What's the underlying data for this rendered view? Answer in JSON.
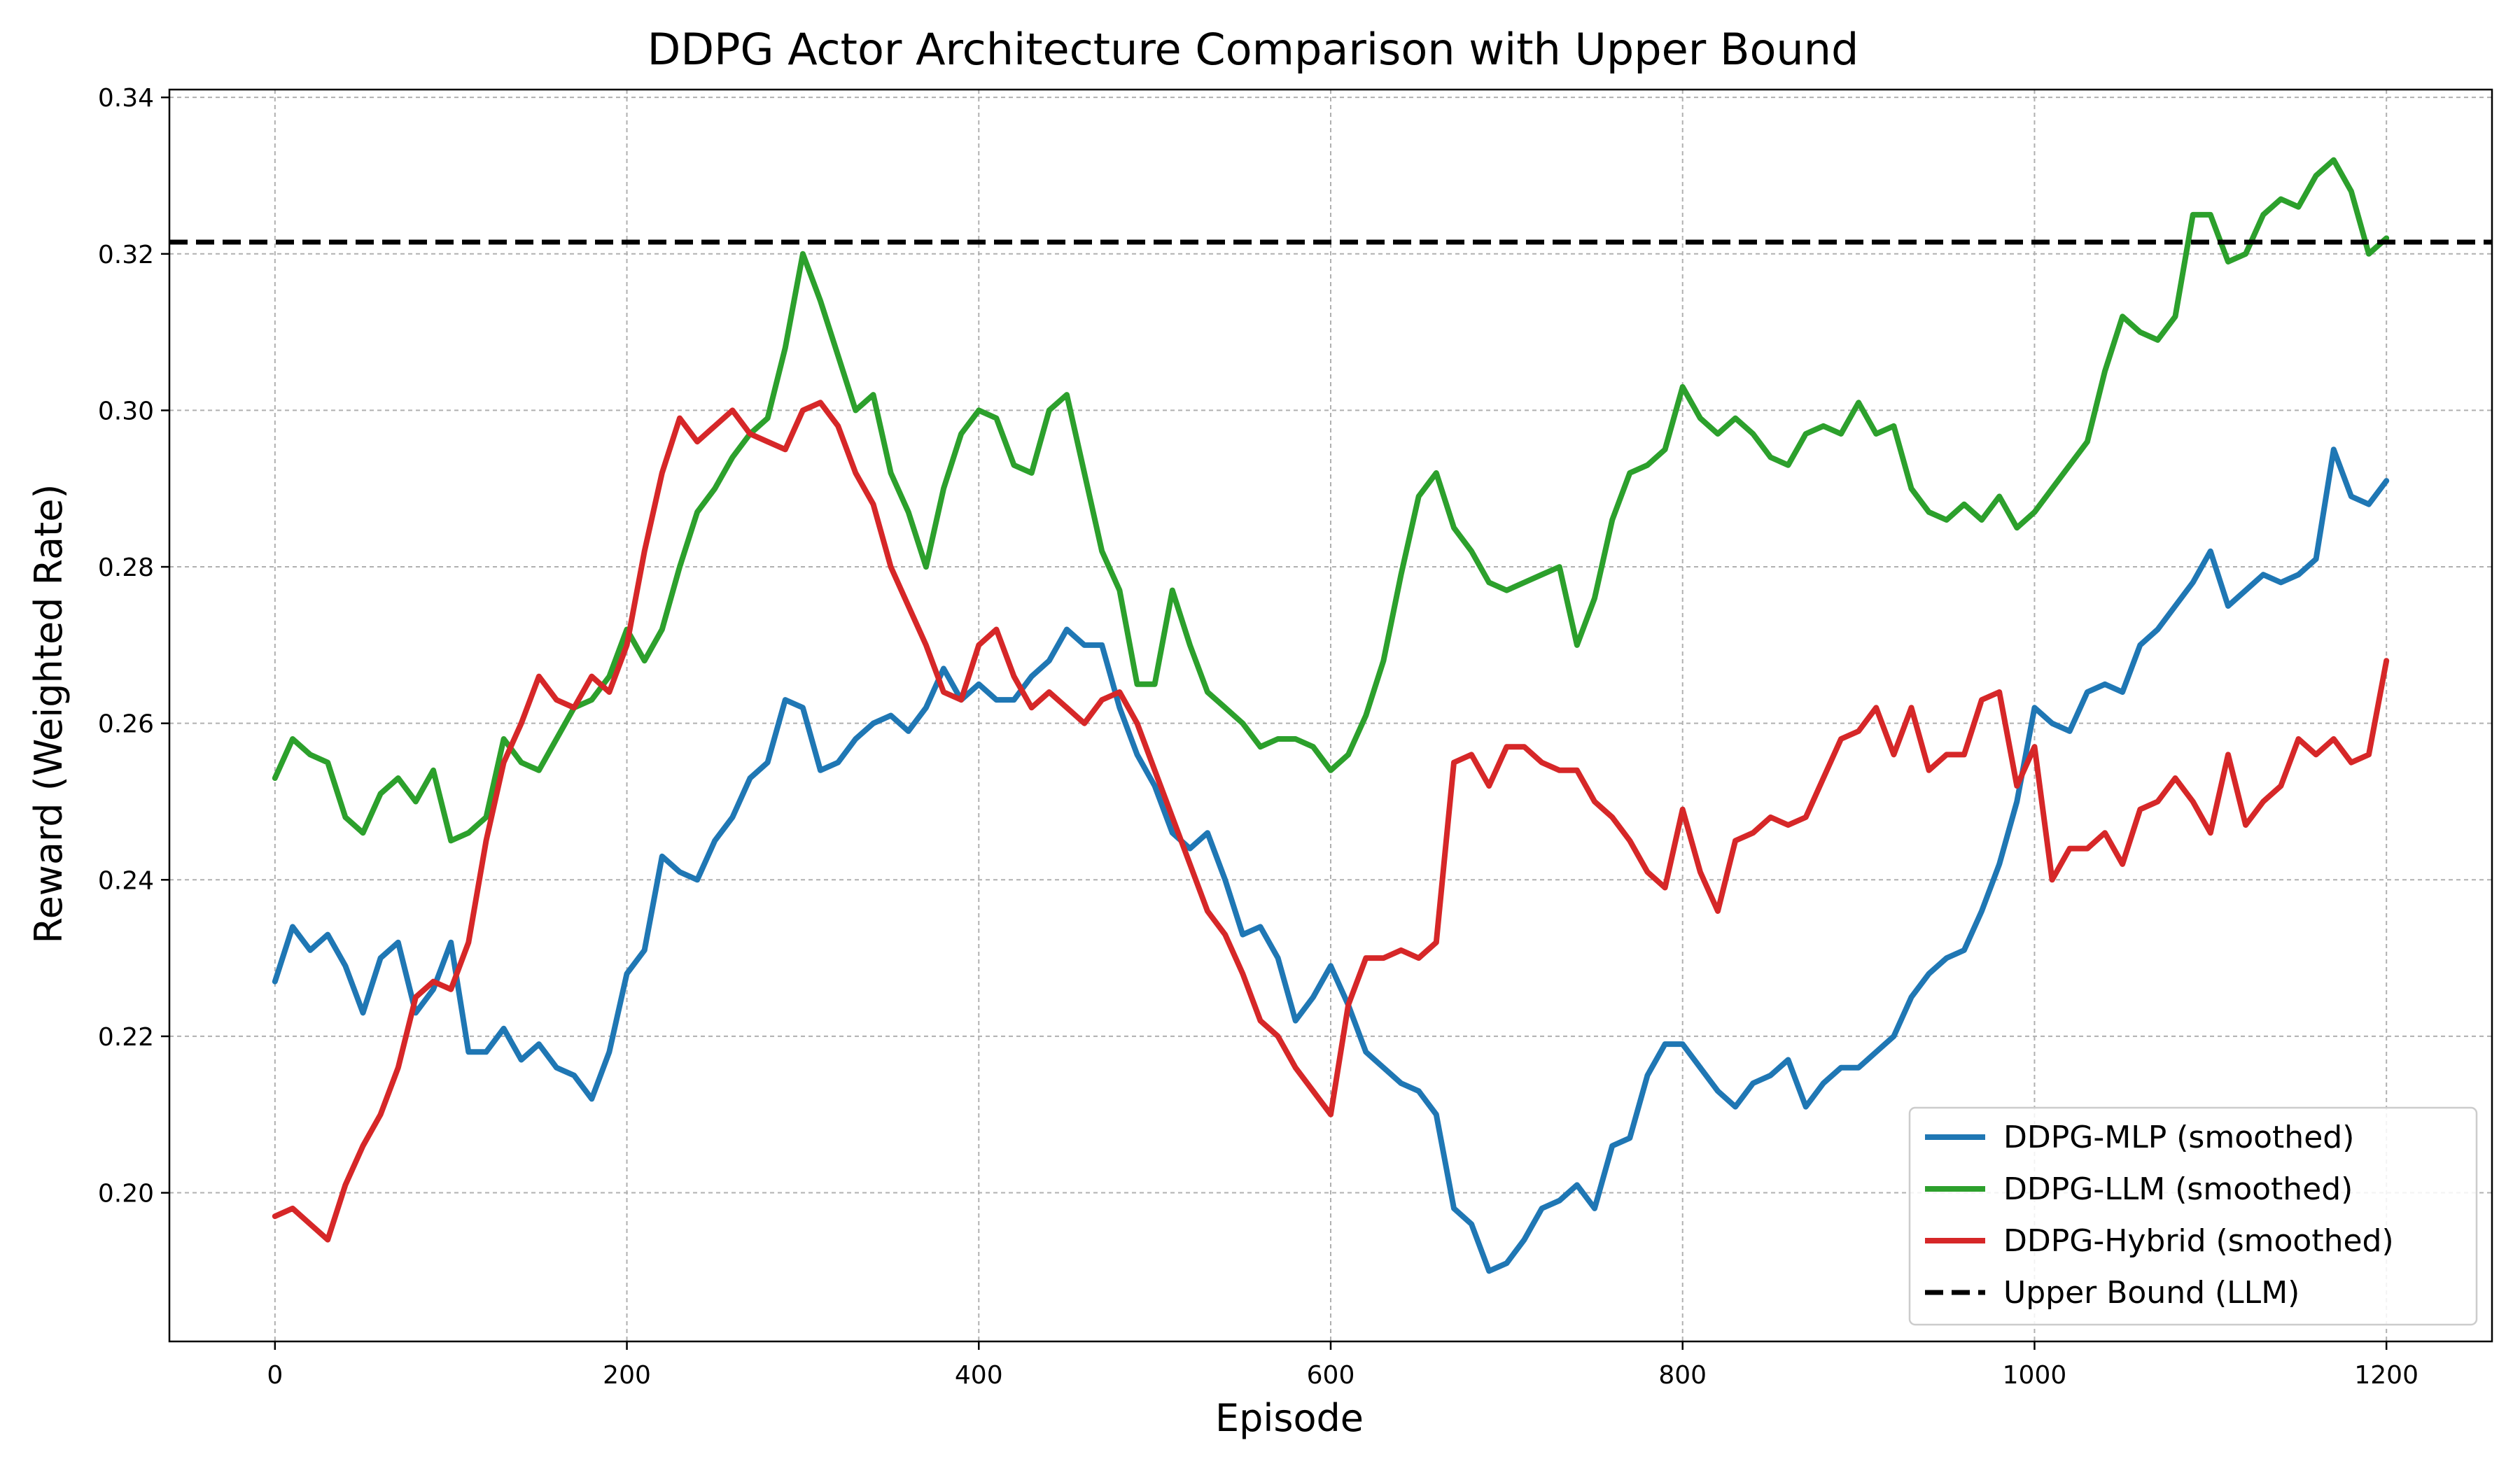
{
  "chart_data": {
    "type": "line",
    "title": "DDPG Actor Architecture Comparison with Upper Bound",
    "xlabel": "Episode",
    "ylabel": "Reward (Weighted Rate)",
    "xlim": [
      -60,
      1260
    ],
    "ylim": [
      0.181,
      0.341
    ],
    "xticks": [
      0,
      200,
      400,
      600,
      800,
      1000,
      1200
    ],
    "xtick_labels": [
      "0",
      "200",
      "400",
      "600",
      "800",
      "1000",
      "1200"
    ],
    "yticks": [
      0.2,
      0.22,
      0.24,
      0.26,
      0.28,
      0.3,
      0.32,
      0.34
    ],
    "ytick_labels": [
      "0.20",
      "0.22",
      "0.24",
      "0.26",
      "0.28",
      "0.30",
      "0.32",
      "0.34"
    ],
    "grid": true,
    "legend_position": "lower-right",
    "series": [
      {
        "name": "DDPG-MLP (smoothed)",
        "color": "#1f77b4",
        "x": [
          0,
          10,
          20,
          30,
          40,
          50,
          60,
          70,
          80,
          90,
          100,
          110,
          120,
          130,
          140,
          150,
          160,
          170,
          180,
          190,
          200,
          210,
          220,
          230,
          240,
          250,
          260,
          270,
          280,
          290,
          300,
          310,
          320,
          330,
          340,
          350,
          360,
          370,
          380,
          390,
          400,
          410,
          420,
          430,
          440,
          450,
          460,
          470,
          480,
          490,
          500,
          510,
          520,
          530,
          540,
          550,
          560,
          570,
          580,
          590,
          600,
          610,
          620,
          630,
          640,
          650,
          660,
          670,
          680,
          690,
          700,
          710,
          720,
          730,
          740,
          750,
          760,
          770,
          780,
          790,
          800,
          810,
          820,
          830,
          840,
          850,
          860,
          870,
          880,
          890,
          900,
          910,
          920,
          930,
          940,
          950,
          960,
          970,
          980,
          990,
          1000,
          1010,
          1020,
          1030,
          1040,
          1050,
          1060,
          1070,
          1080,
          1090,
          1100,
          1110,
          1120,
          1130,
          1140,
          1150,
          1160,
          1170,
          1180,
          1190,
          1200
        ],
        "values": [
          0.227,
          0.234,
          0.231,
          0.233,
          0.229,
          0.223,
          0.23,
          0.232,
          0.223,
          0.226,
          0.232,
          0.218,
          0.218,
          0.221,
          0.217,
          0.219,
          0.216,
          0.215,
          0.212,
          0.218,
          0.228,
          0.231,
          0.243,
          0.241,
          0.24,
          0.245,
          0.248,
          0.253,
          0.255,
          0.263,
          0.262,
          0.254,
          0.255,
          0.258,
          0.26,
          0.261,
          0.259,
          0.262,
          0.267,
          0.263,
          0.265,
          0.263,
          0.263,
          0.266,
          0.268,
          0.272,
          0.27,
          0.27,
          0.262,
          0.256,
          0.252,
          0.246,
          0.244,
          0.246,
          0.24,
          0.233,
          0.234,
          0.23,
          0.222,
          0.225,
          0.229,
          0.224,
          0.218,
          0.216,
          0.214,
          0.213,
          0.21,
          0.198,
          0.196,
          0.19,
          0.191,
          0.194,
          0.198,
          0.199,
          0.201,
          0.198,
          0.206,
          0.207,
          0.215,
          0.219,
          0.219,
          0.216,
          0.213,
          0.211,
          0.214,
          0.215,
          0.217,
          0.211,
          0.214,
          0.216,
          0.216,
          0.218,
          0.22,
          0.225,
          0.228,
          0.23,
          0.231,
          0.236,
          0.242,
          0.25,
          0.262,
          0.26,
          0.259,
          0.264,
          0.265,
          0.264,
          0.27,
          0.272,
          0.275,
          0.278,
          0.282,
          0.275,
          0.277,
          0.279,
          0.278,
          0.279,
          0.281,
          0.295,
          0.289,
          0.288,
          0.291
        ]
      },
      {
        "name": "DDPG-LLM (smoothed)",
        "color": "#2ca02c",
        "x": [
          0,
          10,
          20,
          30,
          40,
          50,
          60,
          70,
          80,
          90,
          100,
          110,
          120,
          130,
          140,
          150,
          160,
          170,
          180,
          190,
          200,
          210,
          220,
          230,
          240,
          250,
          260,
          270,
          280,
          290,
          300,
          310,
          320,
          330,
          340,
          350,
          360,
          370,
          380,
          390,
          400,
          410,
          420,
          430,
          440,
          450,
          460,
          470,
          480,
          490,
          500,
          510,
          520,
          530,
          540,
          550,
          560,
          570,
          580,
          590,
          600,
          610,
          620,
          630,
          640,
          650,
          660,
          670,
          680,
          690,
          700,
          710,
          720,
          730,
          740,
          750,
          760,
          770,
          780,
          790,
          800,
          810,
          820,
          830,
          840,
          850,
          860,
          870,
          880,
          890,
          900,
          910,
          920,
          930,
          940,
          950,
          960,
          970,
          980,
          990,
          1000,
          1010,
          1020,
          1030,
          1040,
          1050,
          1060,
          1070,
          1080,
          1090,
          1100,
          1110,
          1120,
          1130,
          1140,
          1150,
          1160,
          1170,
          1180,
          1190,
          1200
        ],
        "values": [
          0.253,
          0.258,
          0.256,
          0.255,
          0.248,
          0.246,
          0.251,
          0.253,
          0.25,
          0.254,
          0.245,
          0.246,
          0.248,
          0.258,
          0.255,
          0.254,
          0.258,
          0.262,
          0.263,
          0.266,
          0.272,
          0.268,
          0.272,
          0.28,
          0.287,
          0.29,
          0.294,
          0.297,
          0.299,
          0.308,
          0.32,
          0.314,
          0.307,
          0.3,
          0.302,
          0.292,
          0.287,
          0.28,
          0.29,
          0.297,
          0.3,
          0.299,
          0.293,
          0.292,
          0.3,
          0.302,
          0.292,
          0.282,
          0.277,
          0.265,
          0.265,
          0.277,
          0.27,
          0.264,
          0.262,
          0.26,
          0.257,
          0.258,
          0.258,
          0.257,
          0.254,
          0.256,
          0.261,
          0.268,
          0.279,
          0.289,
          0.292,
          0.285,
          0.282,
          0.278,
          0.277,
          0.278,
          0.279,
          0.28,
          0.27,
          0.276,
          0.286,
          0.292,
          0.293,
          0.295,
          0.303,
          0.299,
          0.297,
          0.299,
          0.297,
          0.294,
          0.293,
          0.297,
          0.298,
          0.297,
          0.301,
          0.297,
          0.298,
          0.29,
          0.287,
          0.286,
          0.288,
          0.286,
          0.289,
          0.285,
          0.287,
          0.29,
          0.293,
          0.296,
          0.305,
          0.312,
          0.31,
          0.309,
          0.312,
          0.325,
          0.325,
          0.319,
          0.32,
          0.325,
          0.327,
          0.326,
          0.33,
          0.332,
          0.328,
          0.32,
          0.322
        ]
      },
      {
        "name": "DDPG-Hybrid (smoothed)",
        "color": "#d62728",
        "x": [
          0,
          10,
          20,
          30,
          40,
          50,
          60,
          70,
          80,
          90,
          100,
          110,
          120,
          130,
          140,
          150,
          160,
          170,
          180,
          190,
          200,
          210,
          220,
          230,
          240,
          250,
          260,
          270,
          280,
          290,
          300,
          310,
          320,
          330,
          340,
          350,
          360,
          370,
          380,
          390,
          400,
          410,
          420,
          430,
          440,
          450,
          460,
          470,
          480,
          490,
          500,
          510,
          520,
          530,
          540,
          550,
          560,
          570,
          580,
          590,
          600,
          610,
          620,
          630,
          640,
          650,
          660,
          670,
          680,
          690,
          700,
          710,
          720,
          730,
          740,
          750,
          760,
          770,
          780,
          790,
          800,
          810,
          820,
          830,
          840,
          850,
          860,
          870,
          880,
          890,
          900,
          910,
          920,
          930,
          940,
          950,
          960,
          970,
          980,
          990,
          1000,
          1010,
          1020,
          1030,
          1040,
          1050,
          1060,
          1070,
          1080,
          1090,
          1100,
          1110,
          1120,
          1130,
          1140,
          1150,
          1160,
          1170,
          1180,
          1190,
          1200
        ],
        "values": [
          0.197,
          0.198,
          0.196,
          0.194,
          0.201,
          0.206,
          0.21,
          0.216,
          0.225,
          0.227,
          0.226,
          0.232,
          0.245,
          0.255,
          0.26,
          0.266,
          0.263,
          0.262,
          0.266,
          0.264,
          0.27,
          0.282,
          0.292,
          0.299,
          0.296,
          0.298,
          0.3,
          0.297,
          0.296,
          0.295,
          0.3,
          0.301,
          0.298,
          0.292,
          0.288,
          0.28,
          0.275,
          0.27,
          0.264,
          0.263,
          0.27,
          0.272,
          0.266,
          0.262,
          0.264,
          0.262,
          0.26,
          0.263,
          0.264,
          0.26,
          0.254,
          0.248,
          0.242,
          0.236,
          0.233,
          0.228,
          0.222,
          0.22,
          0.216,
          0.213,
          0.21,
          0.224,
          0.23,
          0.23,
          0.231,
          0.23,
          0.232,
          0.255,
          0.256,
          0.252,
          0.257,
          0.257,
          0.255,
          0.254,
          0.254,
          0.25,
          0.248,
          0.245,
          0.241,
          0.239,
          0.249,
          0.241,
          0.236,
          0.245,
          0.246,
          0.248,
          0.247,
          0.248,
          0.253,
          0.258,
          0.259,
          0.262,
          0.256,
          0.262,
          0.254,
          0.256,
          0.256,
          0.263,
          0.264,
          0.252,
          0.257,
          0.24,
          0.244,
          0.244,
          0.246,
          0.242,
          0.249,
          0.25,
          0.253,
          0.25,
          0.246,
          0.256,
          0.247,
          0.25,
          0.252,
          0.258,
          0.256,
          0.258,
          0.255,
          0.256,
          0.268
        ]
      },
      {
        "name": "Upper Bound (LLM)",
        "color": "#000000",
        "dashed": true,
        "x": [
          -60,
          1260
        ],
        "values": [
          0.3215,
          0.3215
        ]
      }
    ]
  }
}
